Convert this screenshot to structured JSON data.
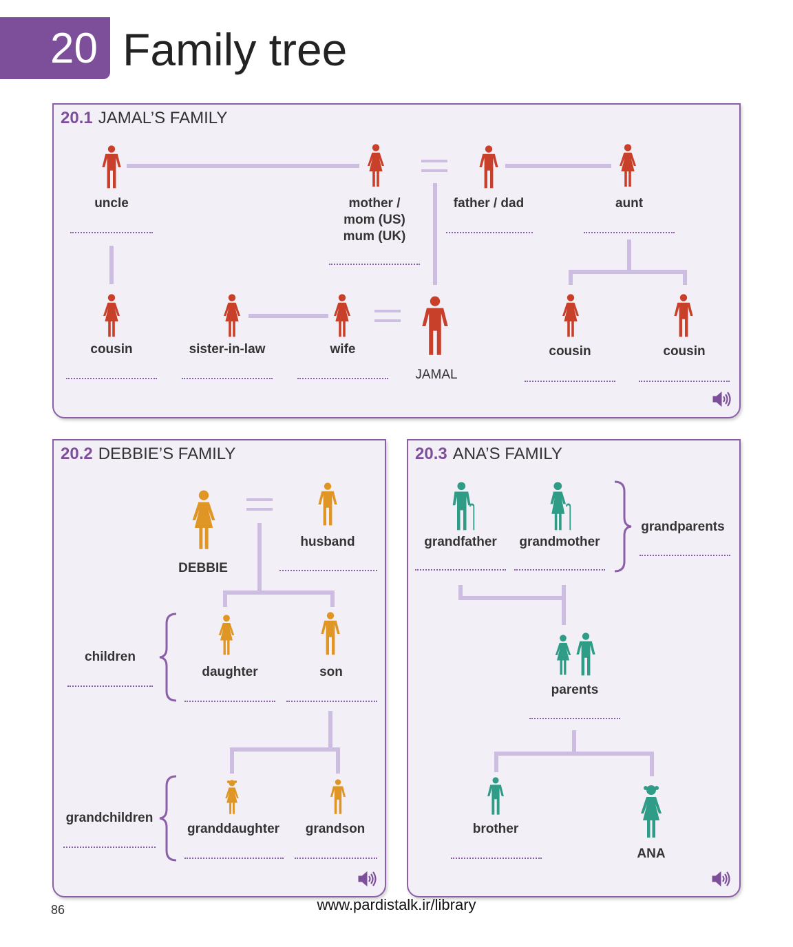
{
  "chapter": {
    "number": "20",
    "title": "Family tree"
  },
  "panels": {
    "p1": {
      "num": "20.1",
      "title": "JAMAL’S FAMILY"
    },
    "p2": {
      "num": "20.2",
      "title": "DEBBIE’S FAMILY"
    },
    "p3": {
      "num": "20.3",
      "title": "ANA’S FAMILY"
    }
  },
  "jamal": {
    "uncle": "uncle",
    "mother": [
      "mother /",
      "mom (US)",
      "mum (UK)"
    ],
    "father": "father / dad",
    "aunt": "aunt",
    "cousin1": "cousin",
    "sister_in_law": "sister-in-law",
    "wife": "wife",
    "jamal": "JAMAL",
    "cousin2": "cousin",
    "cousin3": "cousin"
  },
  "debbie": {
    "debbie": "DEBBIE",
    "husband": "husband",
    "children": "children",
    "daughter": "daughter",
    "son": "son",
    "grandchildren": "grandchildren",
    "granddaughter": "granddaughter",
    "grandson": "grandson"
  },
  "ana": {
    "grandfather": "grandfather",
    "grandmother": "grandmother",
    "grandparents": "grandparents",
    "parents": "parents",
    "brother": "brother",
    "ana": "ANA"
  },
  "colors": {
    "jamal": "#c8402a",
    "debbie": "#e09624",
    "ana": "#2e9c86",
    "accent": "#7d4f9a",
    "line": "#cdbde0"
  },
  "footer": {
    "page": "86",
    "url": "www.pardistalk.ir/library"
  }
}
